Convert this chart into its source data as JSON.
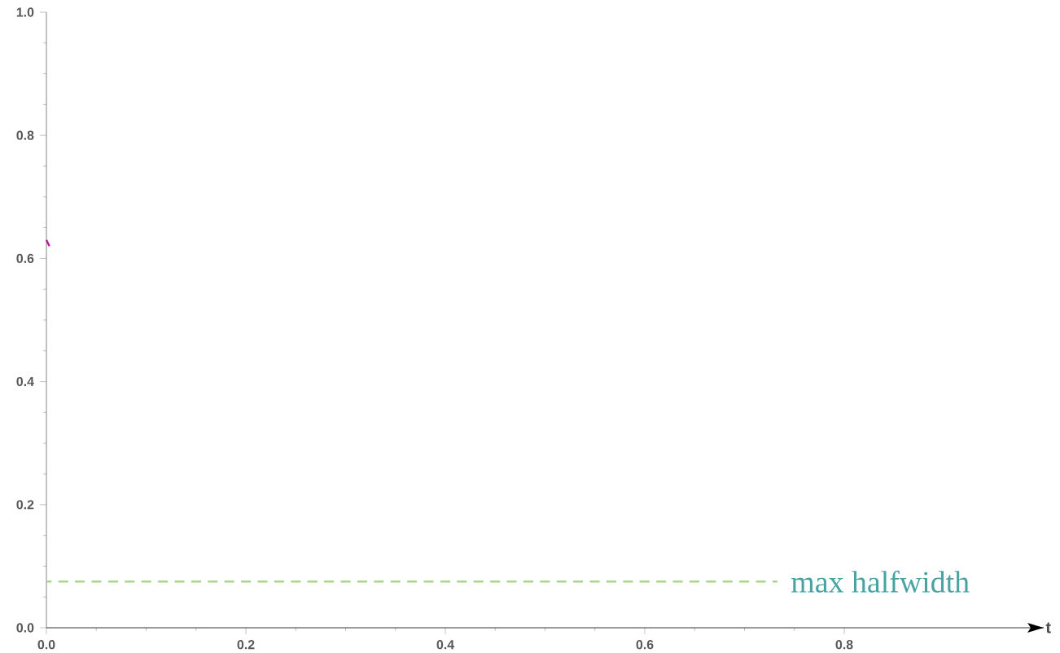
{
  "chart_data": {
    "type": "line",
    "xlabel": "t",
    "xlim": [
      0,
      1.0
    ],
    "ylim": [
      0,
      1.0
    ],
    "xticks": [
      {
        "value": 0,
        "label": "0.0"
      },
      {
        "value": 0.2,
        "label": "0.2"
      },
      {
        "value": 0.4,
        "label": "0.4"
      },
      {
        "value": 0.6,
        "label": "0.6"
      },
      {
        "value": 0.8,
        "label": "0.8"
      }
    ],
    "yticks": [
      {
        "value": 0,
        "label": "0.0"
      },
      {
        "value": 0.2,
        "label": "0.2"
      },
      {
        "value": 0.4,
        "label": "0.4"
      },
      {
        "value": 0.6,
        "label": "0.6"
      },
      {
        "value": 0.8,
        "label": "0.8"
      },
      {
        "value": 1.0,
        "label": "1.0"
      }
    ],
    "grid": false,
    "series": [
      {
        "color": "#b5179e",
        "x": [
          0,
          0.003
        ],
        "values": [
          0.63,
          0.62
        ]
      },
      {
        "name": "max halfwidth",
        "color": "#a6d785",
        "line_style": "dashed",
        "x": [
          0,
          0.733
        ],
        "values": [
          0.075,
          0.075
        ]
      }
    ]
  }
}
